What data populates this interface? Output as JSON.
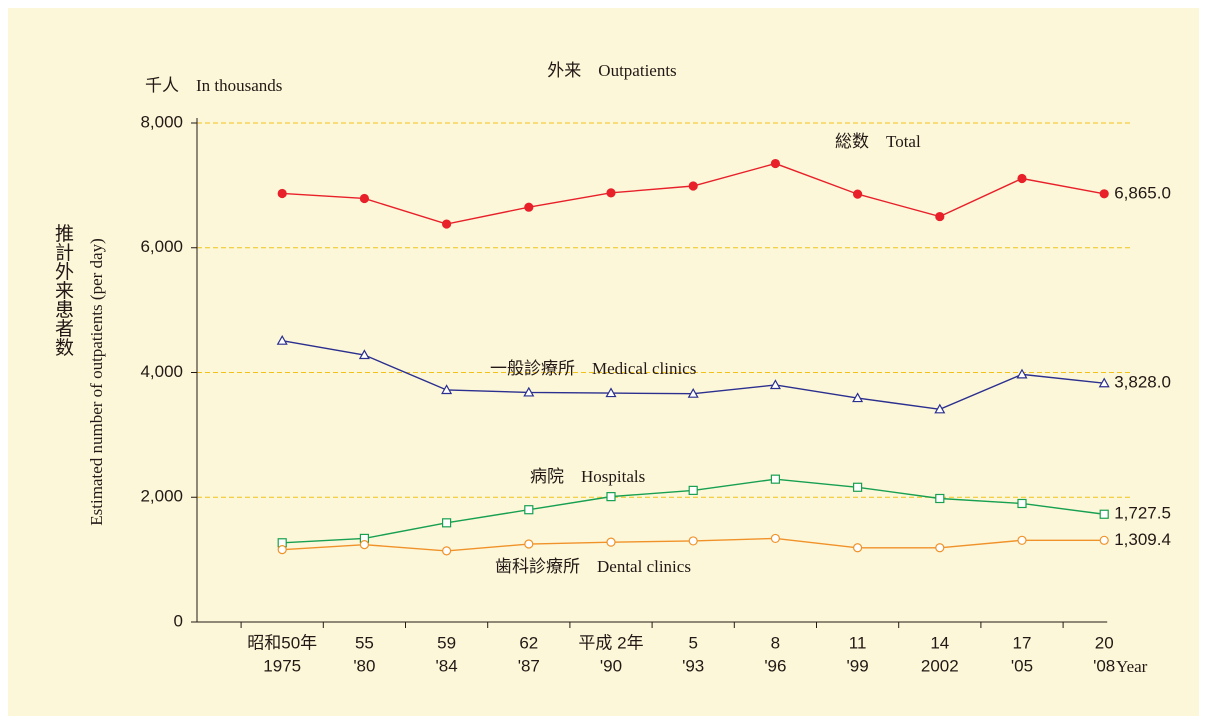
{
  "chart_data": {
    "type": "line",
    "title": "外来　Outpatients",
    "unit_label": "千人　In thousands",
    "y_label_ja": "推計外来患者数",
    "y_label": "Estimated number of outpatients (per day)",
    "x_label": "Year",
    "categories": [
      [
        "昭和50年",
        "1975"
      ],
      [
        "55",
        "'80"
      ],
      [
        "59",
        "'84"
      ],
      [
        "62",
        "'87"
      ],
      [
        "平成 2年",
        "'90"
      ],
      [
        "5",
        "'93"
      ],
      [
        "8",
        "'96"
      ],
      [
        "11",
        "'99"
      ],
      [
        "14",
        "2002"
      ],
      [
        "17",
        "'05"
      ],
      [
        "20",
        "'08"
      ]
    ],
    "ylim": [
      0,
      8000
    ],
    "yticks": [
      0,
      {
        "value": 2000,
        "label": "2,000"
      },
      {
        "value": 4000,
        "label": "4,000"
      },
      {
        "value": 6000,
        "label": "6,000"
      },
      {
        "value": 8000,
        "label": "8,000"
      }
    ],
    "grid": true,
    "series": [
      {
        "name": "総数　Total",
        "color": "#e8202a",
        "marker": "filled-circle",
        "values": [
          6870,
          6790,
          6380,
          6650,
          6880,
          6990,
          7350,
          6860,
          6500,
          7110,
          6865.0
        ],
        "end_label": "6,865.0"
      },
      {
        "name": "一般診療所　Medical clinics",
        "color": "#2b2f8f",
        "marker": "triangle",
        "values": [
          4510,
          4280,
          3720,
          3680,
          3670,
          3660,
          3800,
          3590,
          3410,
          3970,
          3828.0
        ],
        "end_label": "3,828.0"
      },
      {
        "name": "病院　Hospitals",
        "color": "#17a050",
        "marker": "square",
        "values": [
          1270,
          1340,
          1590,
          1800,
          2010,
          2110,
          2290,
          2160,
          1980,
          1900,
          1727.5
        ],
        "end_label": "1,727.5"
      },
      {
        "name": "歯科診療所　Dental clinics",
        "color": "#f0922a",
        "marker": "circle",
        "values": [
          1160,
          1240,
          1140,
          1250,
          1280,
          1300,
          1340,
          1190,
          1190,
          1310,
          1309.4
        ],
        "end_label": "1,309.4"
      }
    ]
  }
}
